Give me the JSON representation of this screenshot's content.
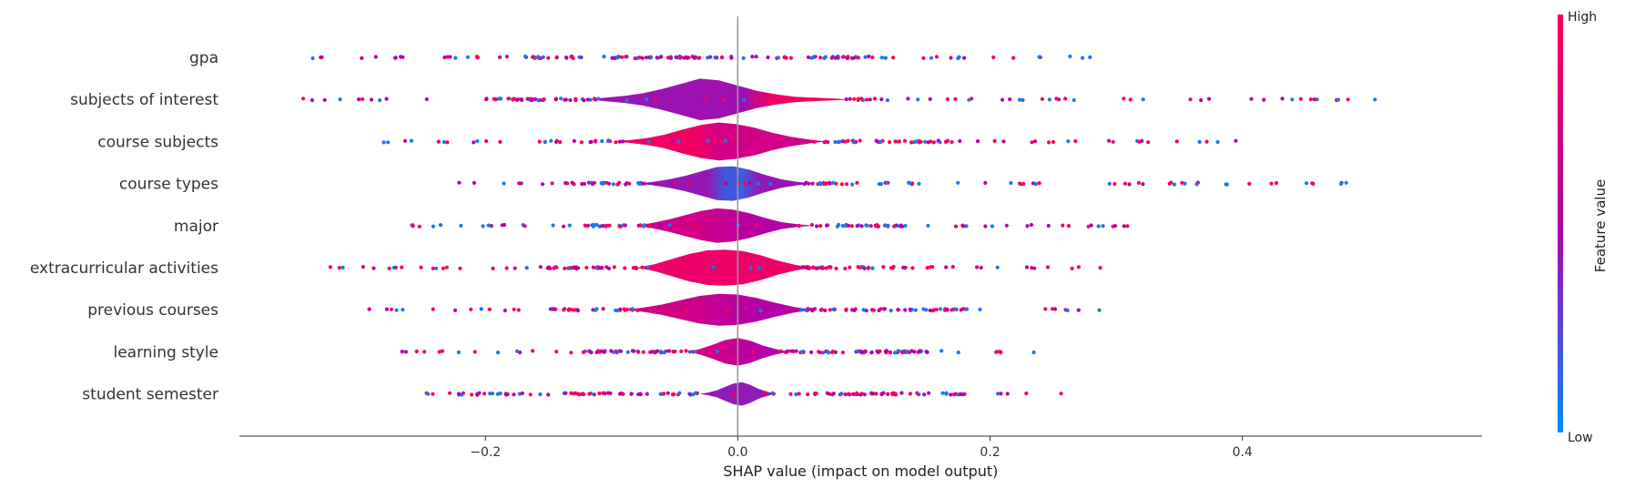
{
  "chart_data": {
    "type": "scatter",
    "subtype": "shap-violin-summary",
    "features": [
      {
        "name": "gpa",
        "span": [
          -0.35,
          0.285
        ],
        "dense": [
          -0.17,
          0.12
        ],
        "violin": [],
        "color_pattern": "mixed"
      },
      {
        "name": "subjects of interest",
        "span": [
          -0.345,
          0.55
        ],
        "dense": [
          -0.2,
          0.12
        ],
        "violin": [
          0.0,
          0.005,
          0.01,
          0.018,
          0.03,
          0.045,
          0.06,
          0.055,
          0.04,
          0.025,
          0.015,
          0.008,
          0.005,
          0.003,
          0.0
        ],
        "violin_range": [
          -0.12,
          0.09
        ],
        "color_pattern": "purple-red-right"
      },
      {
        "name": "course subjects",
        "span": [
          -0.29,
          0.45
        ],
        "dense": [
          -0.16,
          0.17
        ],
        "violin": [
          0.0,
          0.004,
          0.01,
          0.02,
          0.035,
          0.048,
          0.055,
          0.05,
          0.04,
          0.025,
          0.014,
          0.006,
          0.0
        ],
        "violin_range": [
          -0.1,
          0.07
        ],
        "color_pattern": "red-left"
      },
      {
        "name": "course types",
        "span": [
          -0.24,
          0.49
        ],
        "dense": [
          -0.14,
          0.15
        ],
        "violin": [
          0.0,
          0.005,
          0.012,
          0.022,
          0.035,
          0.048,
          0.05,
          0.04,
          0.025,
          0.012,
          0.005,
          0.0
        ],
        "violin_range": [
          -0.08,
          0.06
        ],
        "color_pattern": "blue-center"
      },
      {
        "name": "major",
        "span": [
          -0.26,
          0.315
        ],
        "dense": [
          -0.14,
          0.14
        ],
        "violin": [
          0.0,
          0.008,
          0.018,
          0.03,
          0.042,
          0.05,
          0.046,
          0.036,
          0.022,
          0.01,
          0.004,
          0.0
        ],
        "violin_range": [
          -0.08,
          0.06
        ],
        "color_pattern": "mixed"
      },
      {
        "name": "extracurricular activities",
        "span": [
          -0.35,
          0.29
        ],
        "dense": [
          -0.16,
          0.14
        ],
        "violin": [
          0.0,
          0.01,
          0.025,
          0.04,
          0.05,
          0.052,
          0.048,
          0.036,
          0.02,
          0.008,
          0.0
        ],
        "violin_range": [
          -0.08,
          0.06
        ],
        "color_pattern": "red"
      },
      {
        "name": "previous courses",
        "span": [
          -0.3,
          0.29
        ],
        "dense": [
          -0.15,
          0.18
        ],
        "violin": [
          0.0,
          0.006,
          0.015,
          0.028,
          0.04,
          0.046,
          0.044,
          0.034,
          0.02,
          0.008,
          0.0
        ],
        "violin_range": [
          -0.09,
          0.06
        ],
        "color_pattern": "mixed"
      },
      {
        "name": "learning style",
        "span": [
          -0.27,
          0.235
        ],
        "dense": [
          -0.13,
          0.15
        ],
        "violin": [
          0.0,
          0.008,
          0.02,
          0.034,
          0.04,
          0.032,
          0.018,
          0.008,
          0.0
        ],
        "violin_range": [
          -0.04,
          0.04
        ],
        "color_pattern": "mixed"
      },
      {
        "name": "student semester",
        "span": [
          -0.25,
          0.26
        ],
        "dense": [
          -0.22,
          0.18
        ],
        "violin": [
          0.0,
          0.004,
          0.01,
          0.02,
          0.03,
          0.034,
          0.026,
          0.014,
          0.006,
          0.0
        ],
        "violin_range": [
          -0.03,
          0.03
        ],
        "color_pattern": "purple"
      }
    ],
    "x_ticks": [
      -0.2,
      0.0,
      0.2,
      0.4
    ],
    "x_tick_labels": [
      "−0.2",
      "0.0",
      "0.2",
      "0.4"
    ],
    "xlim": [
      -0.395,
      0.59
    ],
    "xlabel": "SHAP value (impact on model output)",
    "grid": false,
    "colorbar": {
      "high_label": "High",
      "low_label": "Low",
      "label": "Feature value",
      "colors": {
        "high": "#ff0052",
        "mid": "#b300a8",
        "low": "#008bfb"
      }
    }
  }
}
